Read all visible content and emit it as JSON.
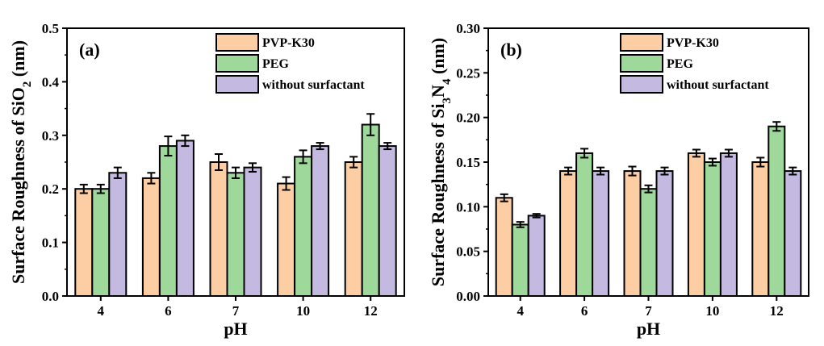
{
  "chart_data": [
    {
      "type": "bar",
      "panel_label": "(a)",
      "xlabel": "pH",
      "ylabel_parts": [
        "Surface Roughness of SiO",
        "2",
        " (nm)"
      ],
      "categories": [
        "4",
        "6",
        "7",
        "10",
        "12"
      ],
      "ylim": [
        0,
        0.5
      ],
      "yticks": [
        "0.0",
        "0.1",
        "0.2",
        "0.3",
        "0.4",
        "0.5"
      ],
      "legend_position": "top-right",
      "series": [
        {
          "name": "PVP-K30",
          "color": "#fdcda3",
          "values": [
            0.2,
            0.22,
            0.25,
            0.21,
            0.25
          ],
          "errors": [
            0.008,
            0.01,
            0.015,
            0.012,
            0.01
          ]
        },
        {
          "name": "PEG",
          "color": "#9fd89b",
          "values": [
            0.2,
            0.28,
            0.23,
            0.26,
            0.32
          ],
          "errors": [
            0.008,
            0.018,
            0.01,
            0.012,
            0.02
          ]
        },
        {
          "name": "without surfactant",
          "color": "#c4b9e0",
          "values": [
            0.23,
            0.29,
            0.24,
            0.28,
            0.28
          ],
          "errors": [
            0.01,
            0.01,
            0.008,
            0.006,
            0.006
          ]
        }
      ]
    },
    {
      "type": "bar",
      "panel_label": "(b)",
      "xlabel": "pH",
      "ylabel_parts": [
        "Surface Roughness of Si",
        "3",
        "N",
        "4",
        " (nm)"
      ],
      "categories": [
        "4",
        "6",
        "7",
        "10",
        "12"
      ],
      "ylim": [
        0,
        0.3
      ],
      "yticks": [
        "0.00",
        "0.05",
        "0.10",
        "0.15",
        "0.20",
        "0.25",
        "0.30"
      ],
      "legend_position": "top-right",
      "series": [
        {
          "name": "PVP-K30",
          "color": "#fdcda3",
          "values": [
            0.11,
            0.14,
            0.14,
            0.16,
            0.15
          ],
          "errors": [
            0.004,
            0.004,
            0.005,
            0.004,
            0.005
          ]
        },
        {
          "name": "PEG",
          "color": "#9fd89b",
          "values": [
            0.08,
            0.16,
            0.12,
            0.15,
            0.19
          ],
          "errors": [
            0.003,
            0.005,
            0.004,
            0.004,
            0.005
          ]
        },
        {
          "name": "without surfactant",
          "color": "#c4b9e0",
          "values": [
            0.09,
            0.14,
            0.14,
            0.16,
            0.14
          ],
          "errors": [
            0.002,
            0.004,
            0.004,
            0.004,
            0.004
          ]
        }
      ]
    }
  ]
}
